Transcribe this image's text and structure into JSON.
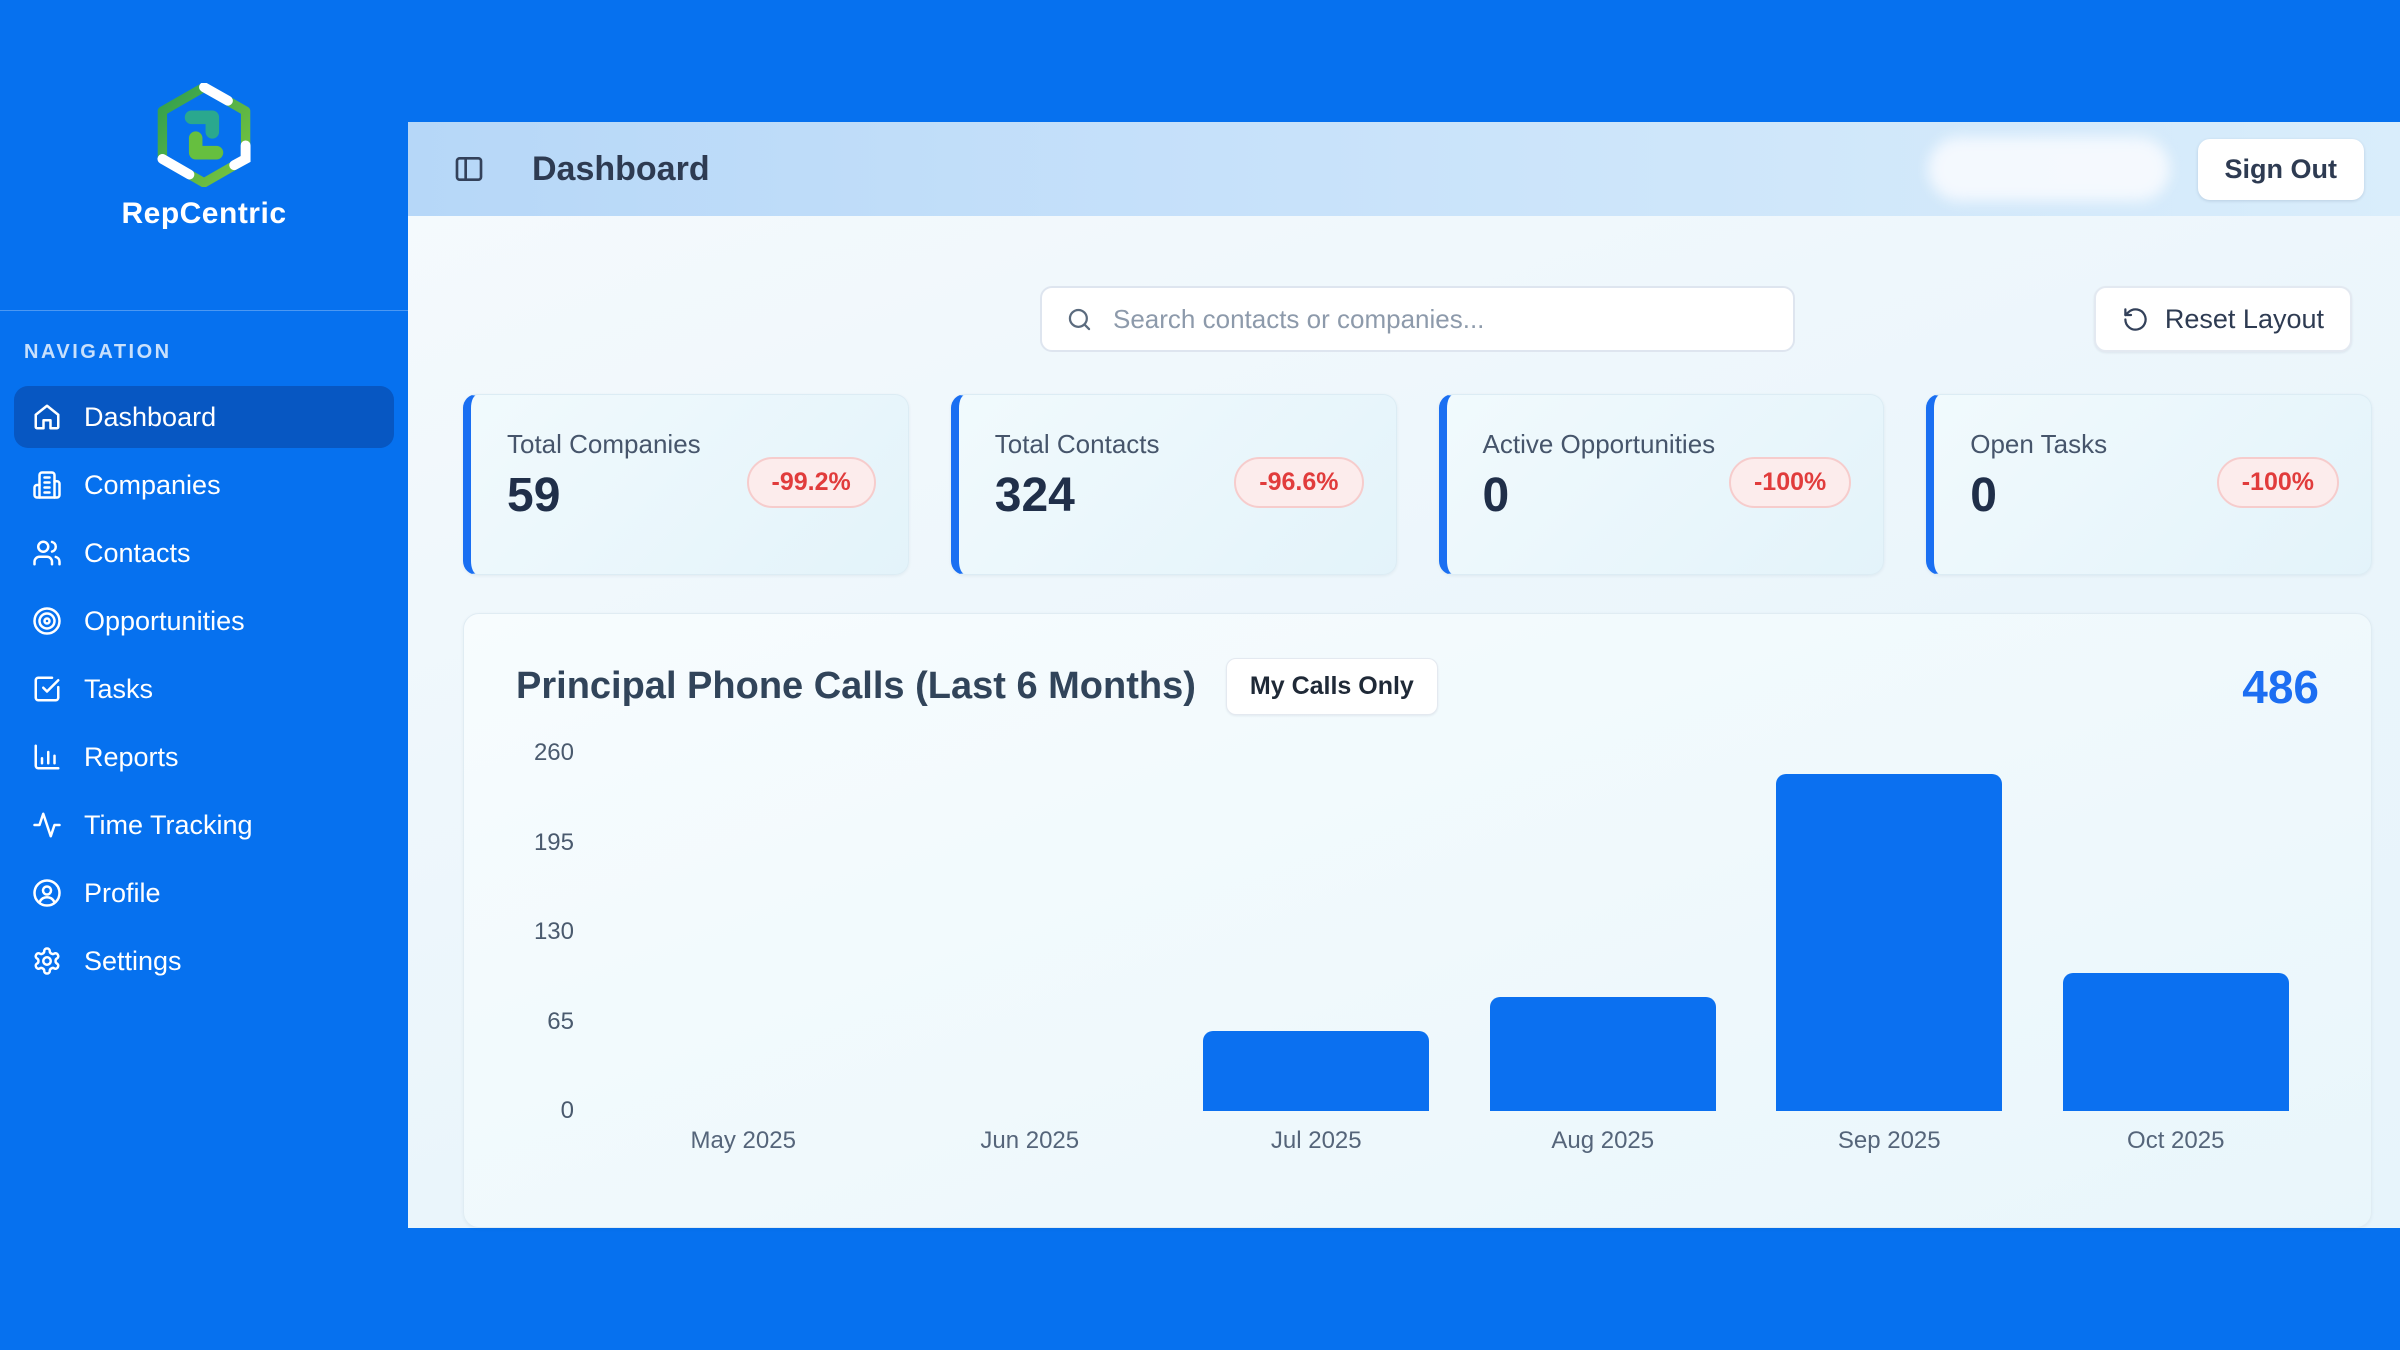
{
  "app": {
    "brand": "RepCentric",
    "page_title": "Dashboard",
    "sign_out_label": "Sign Out"
  },
  "sidebar": {
    "section_label": "NAVIGATION",
    "items": [
      {
        "label": "Dashboard",
        "icon": "home-icon",
        "active": true
      },
      {
        "label": "Companies",
        "icon": "building-icon",
        "active": false
      },
      {
        "label": "Contacts",
        "icon": "users-icon",
        "active": false
      },
      {
        "label": "Opportunities",
        "icon": "target-icon",
        "active": false
      },
      {
        "label": "Tasks",
        "icon": "check-square-icon",
        "active": false
      },
      {
        "label": "Reports",
        "icon": "bar-chart-icon",
        "active": false
      },
      {
        "label": "Time Tracking",
        "icon": "activity-icon",
        "active": false
      },
      {
        "label": "Profile",
        "icon": "user-circle-icon",
        "active": false
      },
      {
        "label": "Settings",
        "icon": "gear-icon",
        "active": false
      }
    ]
  },
  "toolbar": {
    "search_placeholder": "Search contacts or companies...",
    "reset_label": "Reset Layout"
  },
  "stats": [
    {
      "label": "Total Companies",
      "value": "59",
      "delta": "-99.2%"
    },
    {
      "label": "Total Contacts",
      "value": "324",
      "delta": "-96.6%"
    },
    {
      "label": "Active Opportunities",
      "value": "0",
      "delta": "-100%"
    },
    {
      "label": "Open Tasks",
      "value": "0",
      "delta": "-100%"
    }
  ],
  "chart_header": {
    "title": "Principal Phone Calls (Last 6 Months)",
    "toggle_label": "My Calls Only",
    "total": "486"
  },
  "chart_data": {
    "type": "bar",
    "title": "Principal Phone Calls (Last 6 Months)",
    "categories": [
      "May 2025",
      "Jun 2025",
      "Jul 2025",
      "Aug 2025",
      "Sep 2025",
      "Oct 2025"
    ],
    "values": [
      0,
      0,
      58,
      83,
      245,
      100
    ],
    "total": 486,
    "xlabel": "",
    "ylabel": "",
    "ylim": [
      0,
      260
    ],
    "yticks": [
      0,
      65,
      130,
      195,
      260
    ],
    "grid": false,
    "legend": false,
    "bar_color": "#0b70f0"
  },
  "colors": {
    "sidebar_blue": "#0671ef",
    "active_nav_blue": "#0757c2",
    "bar_blue": "#0b70f0",
    "total_blue": "#1c6ef2",
    "delta_red": "#e13c3c",
    "card_accent_blue": "#1a6ff2"
  }
}
